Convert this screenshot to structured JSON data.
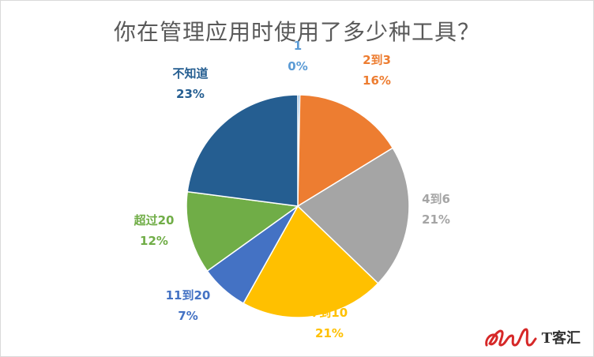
{
  "chart_data": {
    "type": "pie",
    "title": "你在管理应用时使用了多少种工具？",
    "categories": [
      "1",
      "2到3",
      "4到6",
      "7到10",
      "11到20",
      "超过20",
      "不知道"
    ],
    "values": [
      0.3,
      16,
      21,
      21,
      7,
      12,
      23
    ],
    "value_labels": [
      "0%",
      "16%",
      "21%",
      "21%",
      "7%",
      "12%",
      "23%"
    ],
    "colors": [
      "#5B9BD5",
      "#ED7D31",
      "#A5A5A5",
      "#FFC000",
      "#4472C4",
      "#70AD47",
      "#255E91"
    ],
    "legend": "none",
    "data_labels": "outside"
  },
  "watermark": {
    "logo_icon": "red-cursive-logo-icon",
    "text": "T客汇"
  }
}
